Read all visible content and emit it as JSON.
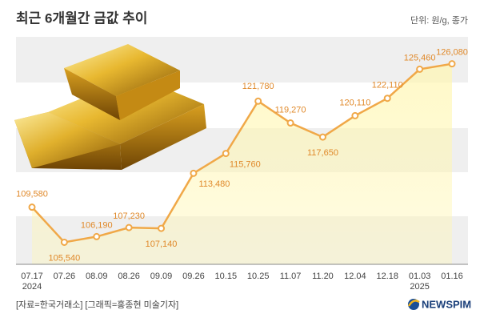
{
  "chart_data": {
    "type": "line",
    "title": "최근 6개월간 금값 추이",
    "subtitle": "단위: 원/g, 종가",
    "source": "[자료=한국거래소] [그래픽=홍종현 미술기자]",
    "logo": "NEWSPIM",
    "categories": [
      "07.17 2024",
      "07.26",
      "08.09",
      "08.26",
      "09.09",
      "09.26",
      "10.15",
      "10.25",
      "11.07",
      "11.20",
      "12.04",
      "12.18",
      "01.03 2025",
      "01.16"
    ],
    "values": [
      109580,
      105540,
      106190,
      107230,
      107140,
      113480,
      115760,
      121780,
      119270,
      117650,
      120110,
      122110,
      125460,
      126080
    ],
    "value_labels": [
      "109,580",
      "105,540",
      "106,190",
      "107,230",
      "107,140",
      "113,480",
      "115,760",
      "121,780",
      "119,270",
      "117,650",
      "120,110",
      "122,110",
      "125,460",
      "126,080"
    ],
    "color": "#f0a848",
    "ylim": [
      103000,
      129000
    ]
  }
}
